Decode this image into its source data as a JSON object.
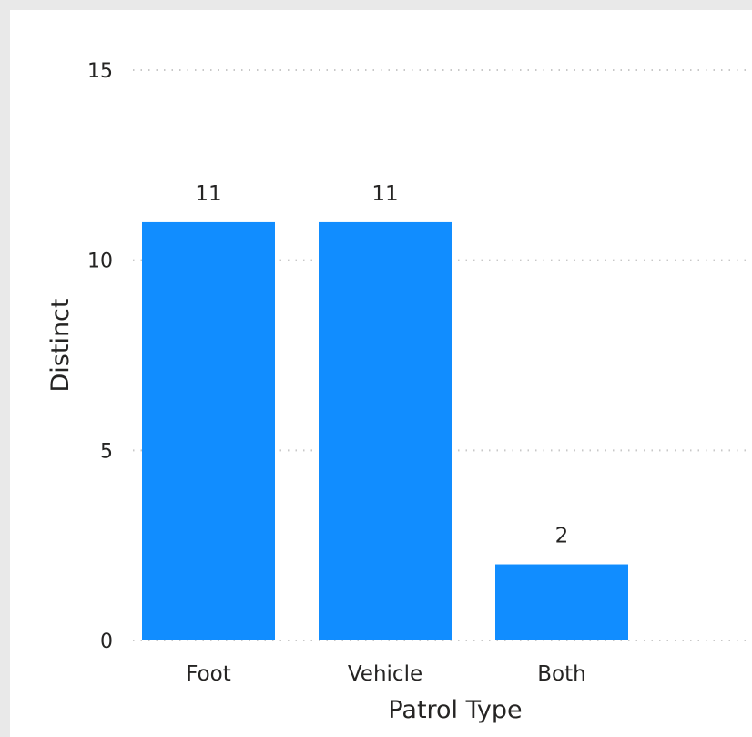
{
  "chart_data": {
    "type": "bar",
    "categories": [
      "Foot",
      "Vehicle",
      "Both"
    ],
    "values": [
      11,
      11,
      2
    ],
    "data_labels": [
      "11",
      "11",
      "2"
    ],
    "xlabel": "Patrol Type",
    "ylabel": "Distinct",
    "ylim": [
      0,
      15
    ],
    "yticks": [
      "0",
      "5",
      "10",
      "15"
    ],
    "grid": true,
    "legend": "none"
  },
  "colors": {
    "bar": "#118dff",
    "background": "#ffffff",
    "frame": "#e9e9e9",
    "text": "#252423",
    "grid": "#c8c8c8"
  }
}
